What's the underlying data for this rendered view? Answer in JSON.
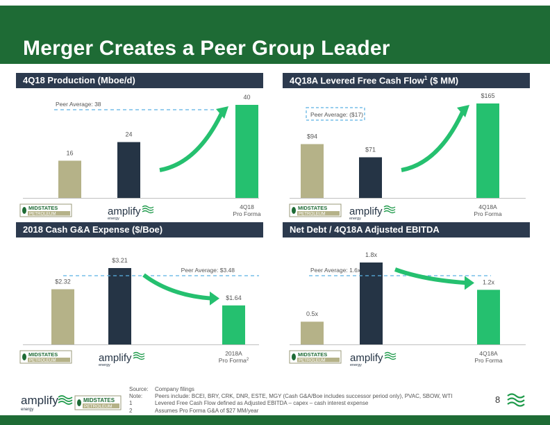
{
  "page": {
    "title": "Merger Creates a Peer Group Leader",
    "page_number": "8"
  },
  "logos": {
    "midstates_line1": "MIDSTATES",
    "midstates_line2": "PETROLEUM",
    "amplify_text": "amplify",
    "amplify_sub": "energy"
  },
  "colors": {
    "midstates_bar": "#b5b288",
    "amplify_bar": "#253445",
    "pro_forma_bar": "#25c06f",
    "peer_line": "#5bb1e3",
    "header_bg": "#2c3a4e",
    "brand_green": "#1e6b35"
  },
  "chart_data": [
    {
      "type": "bar",
      "title": "4Q18 Production (Mboe/d)",
      "categories": [
        "Midstates",
        "Amplify",
        "4Q18 Pro Forma"
      ],
      "category_labels": [
        "",
        "",
        "4Q18\nPro Forma"
      ],
      "values": [
        16,
        24,
        40
      ],
      "value_labels": [
        "16",
        "24",
        "40"
      ],
      "ylim": [
        0,
        42
      ],
      "peer_average": {
        "value": 38,
        "label": "Peer Average: 38",
        "boxed": false
      },
      "arrow": "up",
      "footnote_mark": ""
    },
    {
      "type": "bar",
      "title": "4Q18A Levered Free Cash Flow",
      "title_sup": "1",
      "title_suffix": " ($ MM)",
      "categories": [
        "Midstates",
        "Amplify",
        "4Q18A Pro Forma"
      ],
      "category_labels": [
        "",
        "",
        "4Q18A\nPro Forma"
      ],
      "values": [
        94,
        71,
        165
      ],
      "value_labels": [
        "$94",
        "$71",
        "$165"
      ],
      "ylim": [
        0,
        175
      ],
      "peer_average": {
        "value": -17,
        "label": "Peer Average: ($17)",
        "boxed": true
      },
      "arrow": "up",
      "footnote_mark": ""
    },
    {
      "type": "bar",
      "title": "2018 Cash G&A Expense ($/Boe)",
      "categories": [
        "Midstates",
        "Amplify",
        "2018A Pro Forma"
      ],
      "category_labels": [
        "",
        "",
        "2018A\nPro Forma"
      ],
      "values": [
        2.32,
        3.21,
        1.64
      ],
      "value_labels": [
        "$2.32",
        "$3.21",
        "$1.64"
      ],
      "ylim": [
        0,
        3.4
      ],
      "peer_average": {
        "value": 3.48,
        "label": "Peer Average: $3.48",
        "boxed": false
      },
      "arrow": "down",
      "footnote_mark": "2"
    },
    {
      "type": "bar",
      "title": "Net Debt / 4Q18A Adjusted EBITDA",
      "categories": [
        "Midstates",
        "Amplify",
        "4Q18A Pro Forma"
      ],
      "category_labels": [
        "",
        "",
        "4Q18A\nPro Forma"
      ],
      "values": [
        0.5,
        1.8,
        1.2
      ],
      "value_labels": [
        "0.5x",
        "1.8x",
        "1.2x"
      ],
      "ylim": [
        0,
        1.8
      ],
      "peer_average": {
        "value": 1.6,
        "label": "Peer Average: 1.6x",
        "boxed": false
      },
      "arrow": "down",
      "footnote_mark": ""
    }
  ],
  "footnotes": [
    {
      "key": "Source:",
      "text": "Company filings"
    },
    {
      "key": "Note:",
      "text": "Peers include: BCEI, BRY, CRK, DNR, ESTE, MGY (Cash G&A/Boe includes successor period only), PVAC, SBOW, WTI"
    },
    {
      "key": "1",
      "text": "Levered Free Cash Flow defined as Adjusted EBITDA – capex – cash interest expense"
    },
    {
      "key": "2",
      "text": "Assumes Pro Forma G&A of $27 MM/year"
    }
  ]
}
